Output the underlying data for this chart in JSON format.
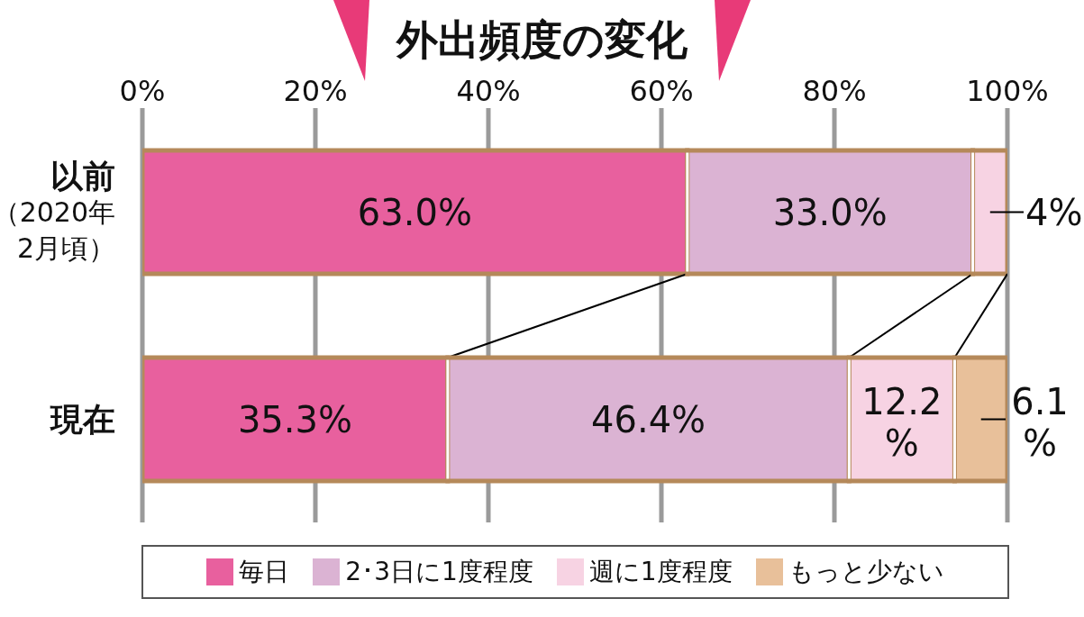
{
  "chart_data": {
    "type": "bar",
    "orientation": "horizontal",
    "stacked": true,
    "title": "外出頻度の変化",
    "categories": [
      "以前（2020年2月頃）",
      "現在"
    ],
    "series": [
      {
        "name": "毎日",
        "color": "#e8609e",
        "values": [
          63.0,
          35.3
        ],
        "value_labels": [
          "63.0%",
          "35.3%"
        ]
      },
      {
        "name": "2･3日に1度程度",
        "color": "#dbb3d3",
        "values": [
          33.0,
          46.4
        ],
        "value_labels": [
          "33.0%",
          "46.4%"
        ]
      },
      {
        "name": "週に1度程度",
        "color": "#f7d3e3",
        "values": [
          4,
          12.2
        ],
        "value_labels": [
          "4%",
          "12.2%"
        ]
      },
      {
        "name": "もっと少ない",
        "color": "#e8c09a",
        "values": [
          null,
          6.1
        ],
        "value_labels": [
          null,
          "6.1%"
        ]
      }
    ],
    "xlim": [
      0,
      100
    ],
    "xticks": [
      {
        "value": 0,
        "label": "0%"
      },
      {
        "value": 20,
        "label": "20%"
      },
      {
        "value": 40,
        "label": "40%"
      },
      {
        "value": 60,
        "label": "60%"
      },
      {
        "value": 80,
        "label": "80%"
      },
      {
        "value": 100,
        "label": "100%"
      }
    ],
    "grid": "x",
    "legend": "bottom"
  }
}
